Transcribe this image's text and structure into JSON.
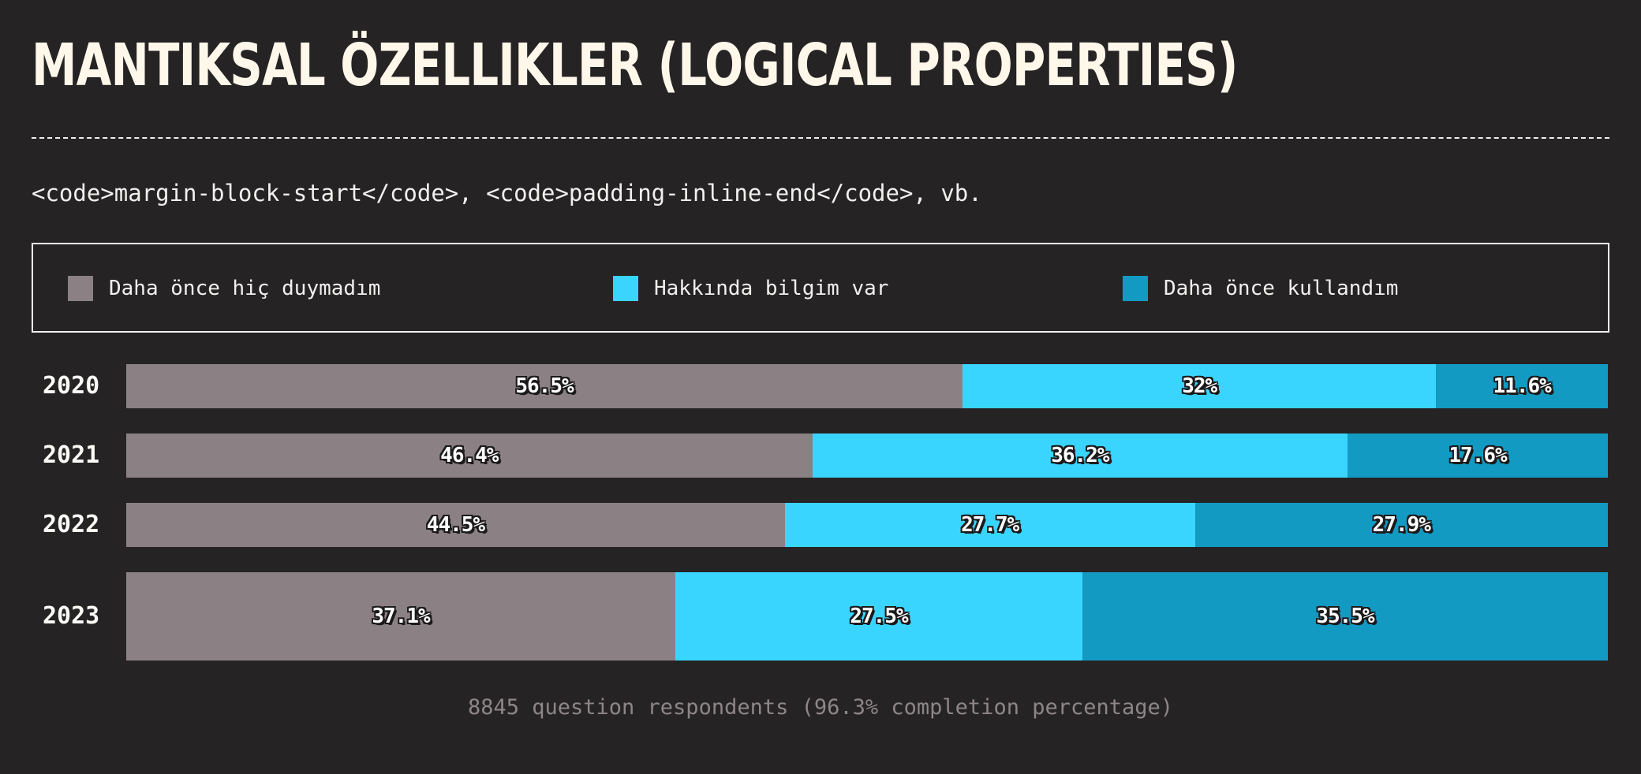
{
  "header": {
    "title": "MANTIKSAL ÖZELLIKLER (LOGICAL PROPERTIES)",
    "subtitle": "<code>margin-block-start</code>, <code>padding-inline-end</code>, vb."
  },
  "footer": {
    "text": "8845 question respondents (96.3% completion percentage)"
  },
  "chart_data": {
    "type": "bar",
    "orientation": "horizontal",
    "stacked": true,
    "normalized_percent": true,
    "legend_position": "top",
    "categories": [
      "2020",
      "2021",
      "2022",
      "2023"
    ],
    "series": [
      {
        "name": "Daha önce hiç duymadım",
        "color": "#8b8185",
        "values": [
          56.5,
          46.4,
          44.5,
          37.1
        ]
      },
      {
        "name": "Hakkında bilgim var",
        "color": "#3ad5fe",
        "values": [
          32,
          36.2,
          27.7,
          27.5
        ]
      },
      {
        "name": "Daha önce kullandım",
        "color": "#139ac2",
        "values": [
          11.6,
          17.6,
          27.9,
          35.5
        ]
      }
    ],
    "data_labels": [
      [
        "56.5%",
        "32%",
        "11.6%"
      ],
      [
        "46.4%",
        "36.2%",
        "17.6%"
      ],
      [
        "44.5%",
        "27.7%",
        "27.9%"
      ],
      [
        "37.1%",
        "27.5%",
        "35.5%"
      ]
    ]
  }
}
